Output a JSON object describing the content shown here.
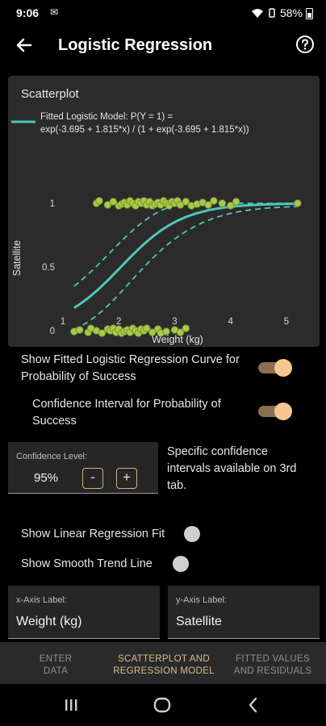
{
  "status_bar": {
    "time": "9:06",
    "battery": "58%"
  },
  "app_bar": {
    "title": "Logistic Regression"
  },
  "plot_card": {
    "title": "Scatterplot",
    "legend_line1": "Fitted Logistic Model: P(Y = 1) =",
    "legend_line2": "exp(-3.695 + 1.815*x) / (1 + exp(-3.695 + 1.815*x))"
  },
  "chart_data": {
    "type": "scatter",
    "xlabel": "Weight (kg)",
    "ylabel": "Satellite",
    "x_ticks": [
      "1",
      "2",
      "3",
      "4",
      "5"
    ],
    "y_ticks": [
      "0",
      "0.5",
      "1"
    ],
    "xlim": [
      1,
      5.3
    ],
    "ylim": [
      -0.1,
      1.1
    ],
    "fit": {
      "intercept": -3.695,
      "slope": 1.815
    },
    "points_y1": [
      1.6,
      1.65,
      1.8,
      1.9,
      2.0,
      2.05,
      2.1,
      2.15,
      2.2,
      2.25,
      2.3,
      2.35,
      2.4,
      2.45,
      2.5,
      2.55,
      2.6,
      2.65,
      2.7,
      2.75,
      2.8,
      2.85,
      2.9,
      2.95,
      3.0,
      3.05,
      3.1,
      3.2,
      3.3,
      3.4,
      3.5,
      3.6,
      3.7,
      3.85,
      4.0,
      4.1,
      5.2
    ],
    "points_y0": [
      1.2,
      1.3,
      1.45,
      1.5,
      1.6,
      1.7,
      1.8,
      1.85,
      1.9,
      1.95,
      2.0,
      2.05,
      2.1,
      2.15,
      2.2,
      2.25,
      2.3,
      2.35,
      2.4,
      2.45,
      2.5,
      2.6,
      2.7,
      2.75,
      2.85,
      3.0,
      3.1,
      3.2
    ]
  },
  "options": {
    "show_curve_label": "Show Fitted Logistic Regression Curve for Probability of Success",
    "conf_interval_label": "Confidence Interval for Probability of Success",
    "conf_level_label": "Confidence Level:",
    "conf_level_value": "95%",
    "minus": "-",
    "plus": "+",
    "conf_note": "Specific confidence intervals available on 3rd tab.",
    "linear_fit_label": "Show Linear Regression Fit",
    "smooth_trend_label": "Show Smooth Trend Line",
    "x_axis_label_caption": "x-Axis Label:",
    "x_axis_label_value": "Weight (kg)",
    "y_axis_label_caption": "y-Axis Label:",
    "y_axis_label_value": "Satellite"
  },
  "tabs": [
    {
      "label1": "ENTER",
      "label2": "DATA"
    },
    {
      "label1": "SCATTERPLOT AND",
      "label2": "REGRESSION MODEL"
    },
    {
      "label1": "FITTED VALUES",
      "label2": "AND RESIDUALS"
    }
  ],
  "colors": {
    "accent": "#e0b98c",
    "curve": "#4fc7b8",
    "points": "#a8c94a",
    "toggle_knob": "#f7c58f"
  }
}
